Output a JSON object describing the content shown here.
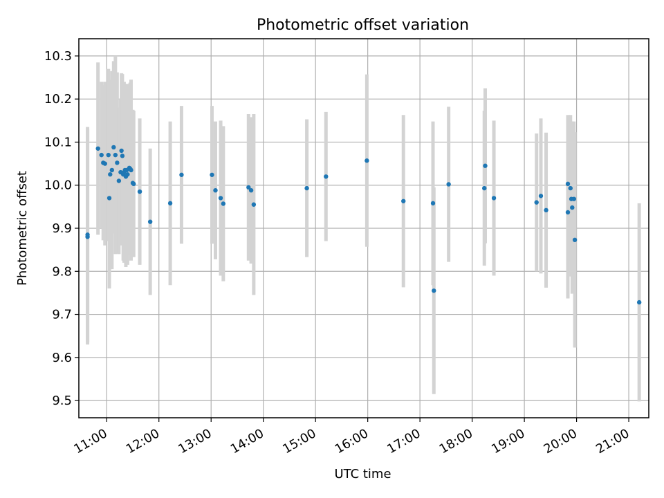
{
  "chart_data": {
    "type": "scatter",
    "title": "Photometric offset variation",
    "xlabel": "UTC time",
    "ylabel": "Photometric offset",
    "x_tick_labels": [
      "11:00",
      "12:00",
      "13:00",
      "14:00",
      "15:00",
      "16:00",
      "17:00",
      "18:00",
      "19:00",
      "20:00",
      "21:00"
    ],
    "x_tick_hours": [
      11,
      12,
      13,
      14,
      15,
      16,
      17,
      18,
      19,
      20,
      21
    ],
    "y_tick_labels": [
      "9.5",
      "9.6",
      "9.7",
      "9.8",
      "9.9",
      "10.0",
      "10.1",
      "10.2",
      "10.3"
    ],
    "y_tick_values": [
      9.5,
      9.6,
      9.7,
      9.8,
      9.9,
      10.0,
      10.1,
      10.2,
      10.3
    ],
    "xlim": [
      "10:28",
      "21:23"
    ],
    "ylim": [
      9.46,
      10.34
    ],
    "grid": true,
    "legend": false,
    "colors": {
      "points": "#1f77b4",
      "errorbars": "#d3d3d3",
      "grid": "#b0b0b0"
    },
    "series": [
      {
        "x": [
          "10:38",
          "10:38",
          "10:50",
          "10:54",
          "10:56",
          "10:58",
          "11:02",
          "11:03",
          "11:04",
          "11:06",
          "11:08",
          "11:10",
          "11:12",
          "11:14",
          "11:16",
          "11:17",
          "11:18",
          "11:19",
          "11:20",
          "11:21",
          "11:22",
          "11:23",
          "11:24",
          "11:26",
          "11:27",
          "11:28",
          "11:30",
          "11:31",
          "11:38",
          "11:50",
          "12:13",
          "12:26",
          "13:01",
          "13:05",
          "13:11",
          "13:14",
          "13:43",
          "13:46",
          "13:49",
          "14:50",
          "15:12",
          "15:59",
          "16:41",
          "17:15",
          "17:16",
          "17:33",
          "18:14",
          "18:15",
          "18:25",
          "19:14",
          "19:19",
          "19:25",
          "19:50",
          "19:50",
          "19:53",
          "19:54",
          "19:55",
          "19:57",
          "19:58"
        ],
        "y": [
          9.88,
          9.885,
          10.085,
          10.07,
          10.052,
          10.05,
          10.07,
          9.97,
          10.025,
          10.035,
          10.088,
          10.07,
          10.052,
          10.01,
          10.03,
          10.08,
          10.068,
          10.025,
          10.03,
          10.035,
          10.02,
          10.035,
          10.025,
          10.04,
          10.038,
          10.035,
          10.005,
          10.003,
          9.985,
          9.915,
          9.958,
          10.024,
          10.024,
          9.988,
          9.97,
          9.957,
          9.995,
          9.988,
          9.955,
          9.993,
          10.02,
          10.057,
          9.963,
          9.958,
          9.755,
          10.002,
          9.993,
          10.045,
          9.97,
          9.96,
          9.975,
          9.942,
          9.937,
          10.003,
          9.993,
          9.968,
          9.948,
          9.968,
          9.873
        ],
        "yerr": [
          0.25,
          0.25,
          0.2,
          0.17,
          0.18,
          0.19,
          0.2,
          0.21,
          0.22,
          0.23,
          0.2,
          0.23,
          0.21,
          0.17,
          0.17,
          0.18,
          0.19,
          0.2,
          0.21,
          0.2,
          0.21,
          0.2,
          0.21,
          0.19,
          0.2,
          0.21,
          0.17,
          0.17,
          0.17,
          0.17,
          0.19,
          0.16,
          0.16,
          0.16,
          0.18,
          0.18,
          0.17,
          0.17,
          0.21,
          0.16,
          0.15,
          0.2,
          0.2,
          0.19,
          0.24,
          0.18,
          0.18,
          0.18,
          0.18,
          0.16,
          0.18,
          0.18,
          0.2,
          0.16,
          0.17,
          0.18,
          0.2,
          0.18,
          0.25
        ]
      },
      {
        "x": [
          "21:12"
        ],
        "y": [
          9.728
        ],
        "yerr": [
          0.23
        ]
      }
    ]
  }
}
